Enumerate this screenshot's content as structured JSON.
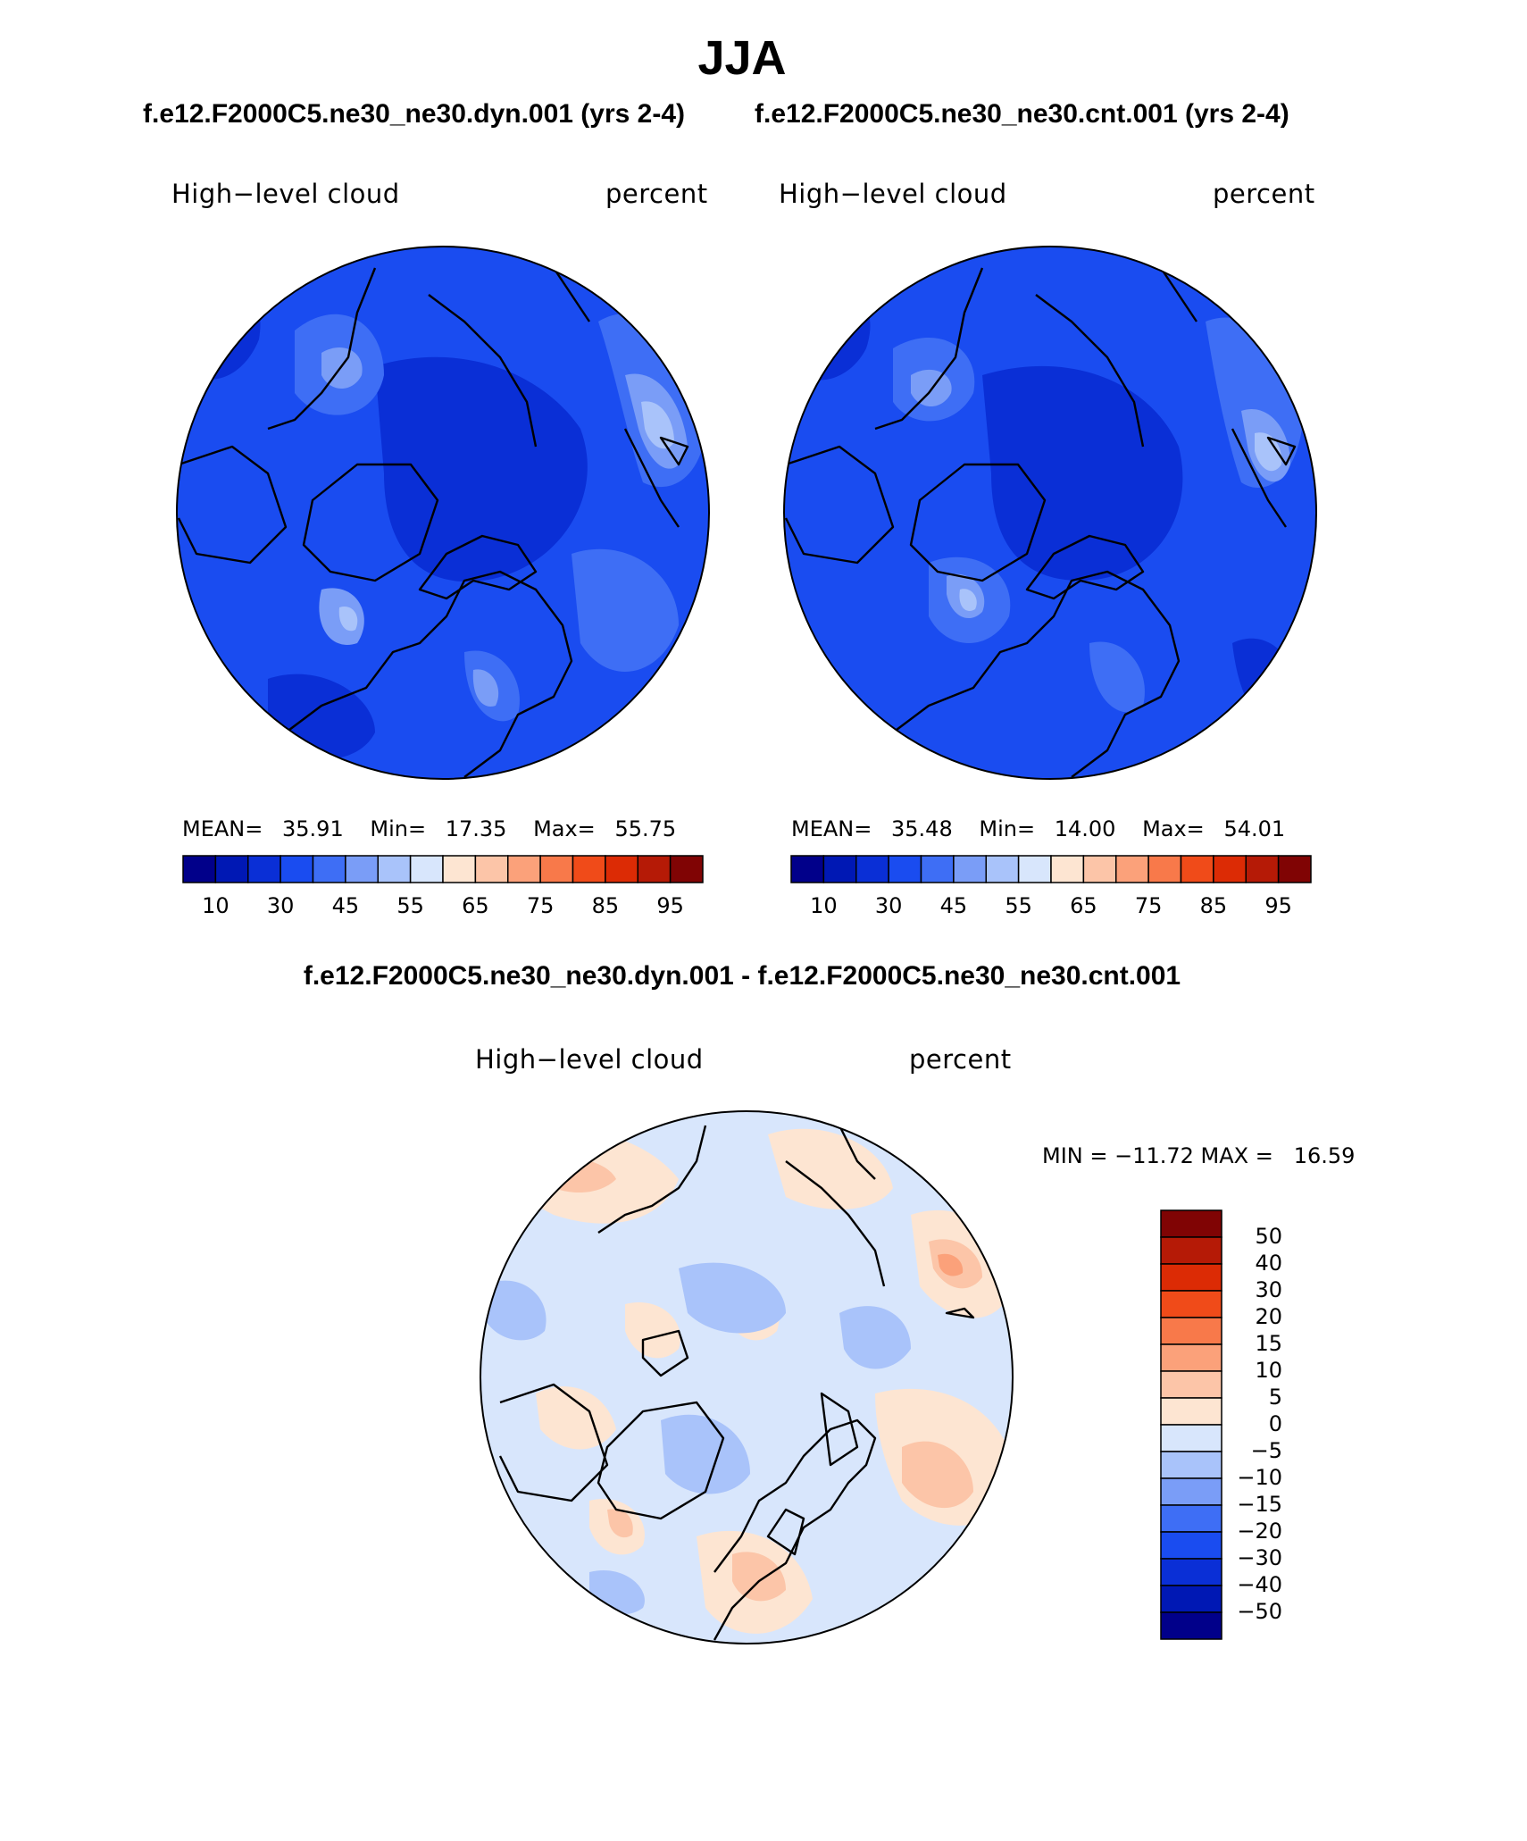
{
  "season": "JJA",
  "panels": {
    "left": {
      "case_title": "f.e12.F2000C5.ne30_ne30.dyn.001 (yrs 2-4)",
      "variable": "High−level cloud",
      "units": "percent",
      "mean_label": "MEAN=",
      "mean": "35.91",
      "min_label": "Min=",
      "min": "17.35",
      "max_label": "Max=",
      "max": "55.75"
    },
    "right": {
      "case_title": "f.e12.F2000C5.ne30_ne30.cnt.001 (yrs 2-4)",
      "variable": "High−level cloud",
      "units": "percent",
      "mean_label": "MEAN=",
      "mean": "35.48",
      "min_label": "Min=",
      "min": "14.00",
      "max_label": "Max=",
      "max": "54.01"
    },
    "difference": {
      "title": "f.e12.F2000C5.ne30_ne30.dyn.001 - f.e12.F2000C5.ne30_ne30.cnt.001",
      "variable": "High−level cloud",
      "units": "percent",
      "minmax_text": "MIN = −11.72 MAX =   16.59"
    }
  },
  "colorbar_main": {
    "labels": [
      "10",
      "30",
      "45",
      "55",
      "65",
      "75",
      "85",
      "95"
    ],
    "colors": [
      "#01008a",
      "#0018b4",
      "#0a2fd6",
      "#1a4cf0",
      "#3e6ef5",
      "#7a9df7",
      "#a9c3fa",
      "#d8e6fc",
      "#fde5d2",
      "#fcc5a8",
      "#fba17a",
      "#f8794a",
      "#f04b19",
      "#dc2b05",
      "#b51a06",
      "#800404"
    ]
  },
  "colorbar_diff": {
    "labels": [
      "50",
      "40",
      "30",
      "20",
      "15",
      "10",
      "5",
      "0",
      "−5",
      "−10",
      "−15",
      "−20",
      "−30",
      "−40",
      "−50"
    ],
    "colors_top_to_bottom": [
      "#800404",
      "#b51a06",
      "#dc2b05",
      "#f04b19",
      "#f8794a",
      "#fba17a",
      "#fcc5a8",
      "#fde5d2",
      "#d8e6fc",
      "#a9c3fa",
      "#7a9df7",
      "#3e6ef5",
      "#1a4cf0",
      "#0a2fd6",
      "#0018b4",
      "#01008a"
    ]
  },
  "map_colors": {
    "base_field": "#1a4cf0",
    "darker_field": "#0a2fd6",
    "lighter_field": "#3e6ef5",
    "light_patch": "#7a9df7",
    "lightest_patch": "#a9c3fa",
    "diff_background": "#d8e6fc",
    "diff_positive": "#fde5d2",
    "diff_positive_strong": "#fcc5a8",
    "diff_negative": "#a9c3fa",
    "diff_negative_strong": "#7a9df7"
  }
}
